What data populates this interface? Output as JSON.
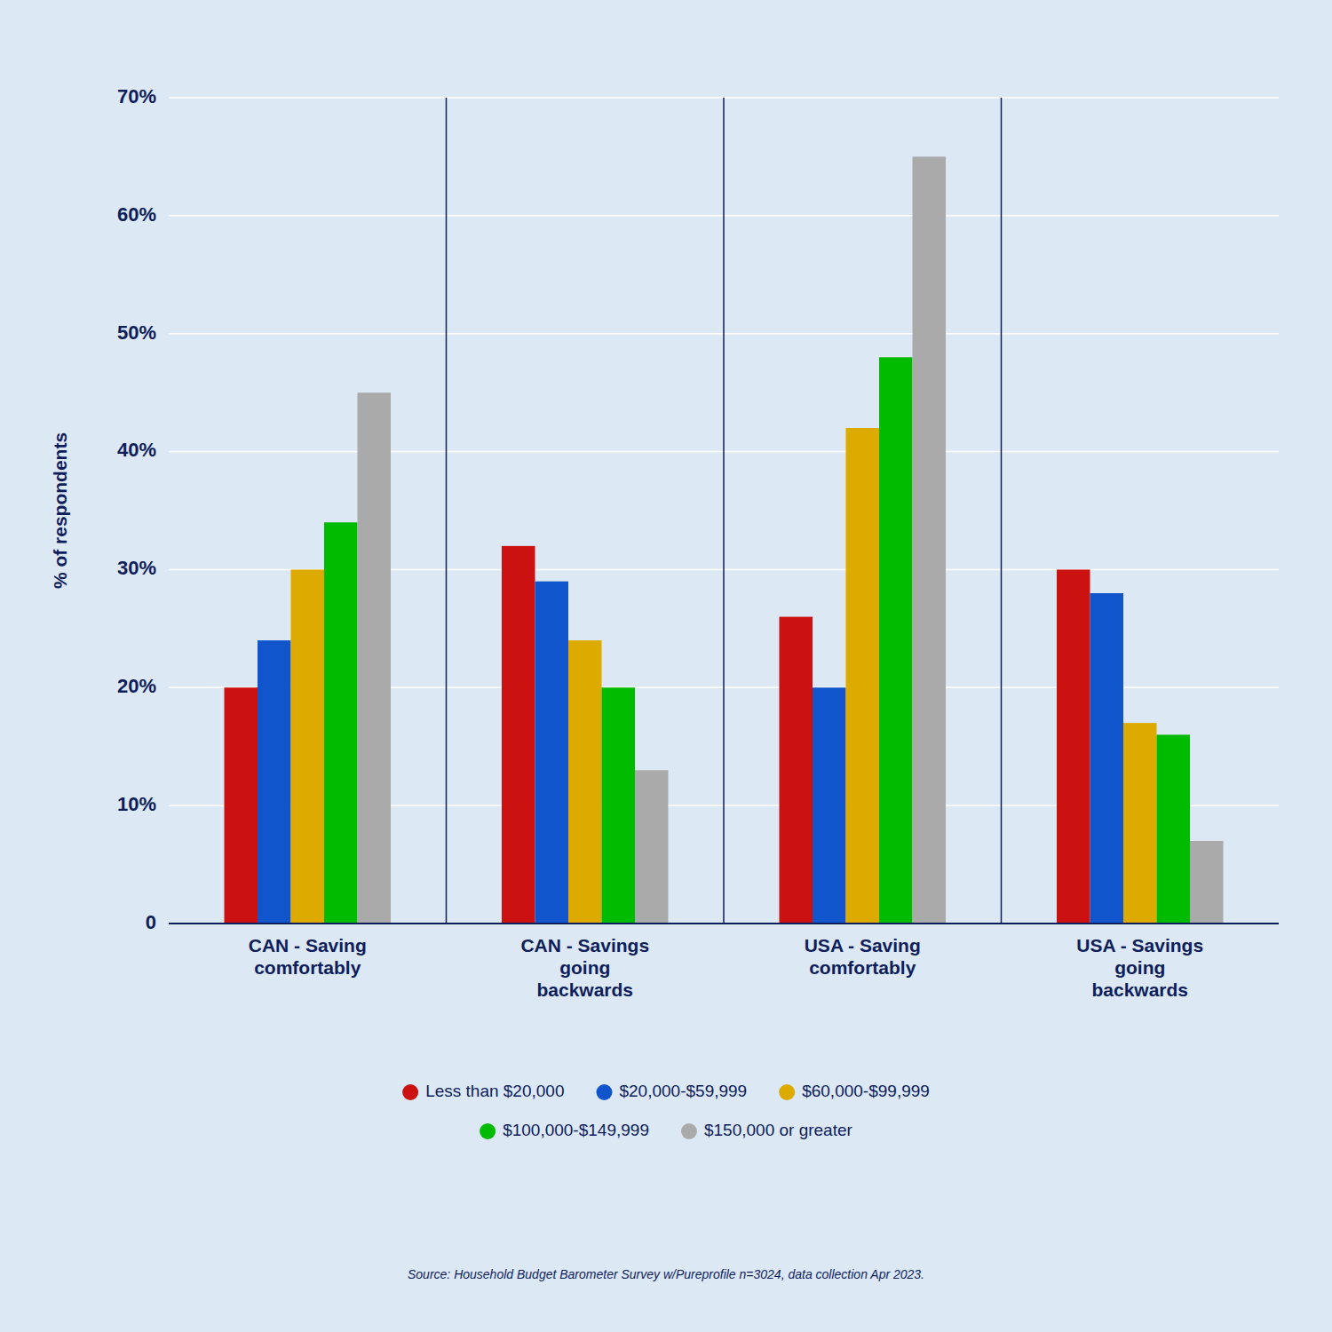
{
  "chart_data": {
    "type": "bar",
    "categories": [
      "CAN - Saving\ncomfortably",
      "CAN - Savings\ngoing\nbackwards",
      "USA - Saving\ncomfortably",
      "USA - Savings\ngoing\nbackwards"
    ],
    "series": [
      {
        "name": "Less than $20,000",
        "color": "#CC1111",
        "values": [
          20,
          32,
          26,
          30
        ]
      },
      {
        "name": "$20,000-$59,999",
        "color": "#1155CC",
        "values": [
          24,
          29,
          20,
          28
        ]
      },
      {
        "name": "$60,000-$99,999",
        "color": "#DDAA00",
        "values": [
          30,
          24,
          42,
          17
        ]
      },
      {
        "name": "$100,000-$149,999",
        "color": "#00BB00",
        "values": [
          34,
          20,
          48,
          16
        ]
      },
      {
        "name": "$150,000 or greater",
        "color": "#AAAAAA",
        "values": [
          45,
          13,
          65,
          7
        ]
      }
    ],
    "ylabel": "% of respondents",
    "ylim": [
      0,
      70
    ],
    "yticks": [
      0,
      {
        "value": 10,
        "label": "10%"
      },
      {
        "value": 20,
        "label": "20%"
      },
      {
        "value": 30,
        "label": "30%"
      },
      {
        "value": 40,
        "label": "40%"
      },
      {
        "value": 50,
        "label": "50%"
      },
      {
        "value": 60,
        "label": "60%"
      },
      {
        "value": 70,
        "label": "70%"
      }
    ],
    "grid": true,
    "legend": "bottom",
    "annotations": [
      "Source: Household Budget Barometer Survey w/Pureprofile n=3024, data collection Apr 2023."
    ]
  }
}
